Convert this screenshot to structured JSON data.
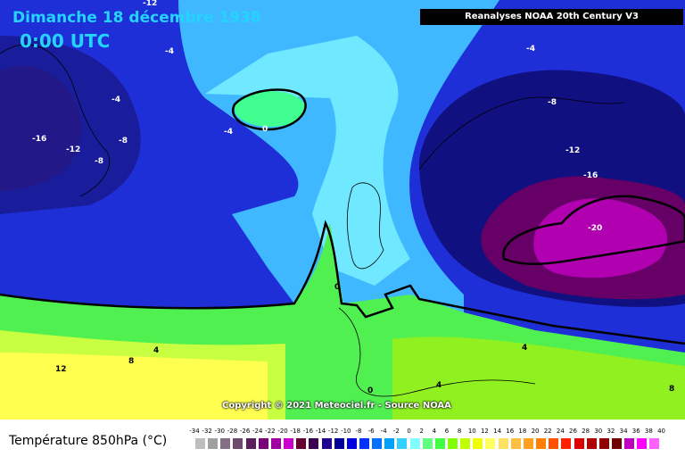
{
  "header": {
    "date": "Dimanche 18 décembre 1938",
    "time": "0:00 UTC",
    "source": "Reanalyses NOAA 20th Century V3"
  },
  "copyright": "Copyright © 2021 Meteociel.fr - Source NOAA",
  "legend": {
    "title": "Température 850hPa (°C)",
    "ticks": [
      "-34",
      "-32",
      "-30",
      "-28",
      "-26",
      "-24",
      "-22",
      "-20",
      "-18",
      "-16",
      "-14",
      "-12",
      "-10",
      "-8",
      "-6",
      "-4",
      "-2",
      "0",
      "2",
      "4",
      "6",
      "8",
      "10",
      "12",
      "14",
      "16",
      "18",
      "20",
      "22",
      "24",
      "26",
      "28",
      "30",
      "32",
      "34",
      "36",
      "38",
      "40"
    ],
    "colors": [
      "#bdbdbd",
      "#9f9f9f",
      "#876e87",
      "#6e4a6e",
      "#5c1f5c",
      "#7a007a",
      "#a000a0",
      "#cc00cc",
      "#660033",
      "#3c0050",
      "#200090",
      "#000099",
      "#0000dd",
      "#0033ff",
      "#0070ff",
      "#00a0ff",
      "#30d0ff",
      "#80ffff",
      "#60ff80",
      "#40ff40",
      "#80ff00",
      "#c0ff00",
      "#f0ff00",
      "#ffff60",
      "#ffe060",
      "#ffc040",
      "#ffa020",
      "#ff8000",
      "#ff5000",
      "#ff2000",
      "#dd0000",
      "#b00000",
      "#900000",
      "#700000",
      "#c000c0",
      "#ff00ff",
      "#ff60ff"
    ]
  },
  "contour_labels": [
    "-12",
    "-8",
    "-4",
    "-16",
    "-12",
    "-8",
    "-8",
    "-4",
    "0",
    "-4",
    "-8",
    "-12",
    "-16",
    "-20",
    "0",
    "4",
    "8",
    "12",
    "4",
    "0",
    "4",
    "8"
  ],
  "colors": {
    "title": "#25d3ff",
    "deep_blue": "#1a1acc",
    "mid_blue": "#0060ff",
    "light_blue": "#40c0ff",
    "cyan": "#80ffff",
    "green": "#40ff60",
    "yellow": "#ffff40"
  }
}
